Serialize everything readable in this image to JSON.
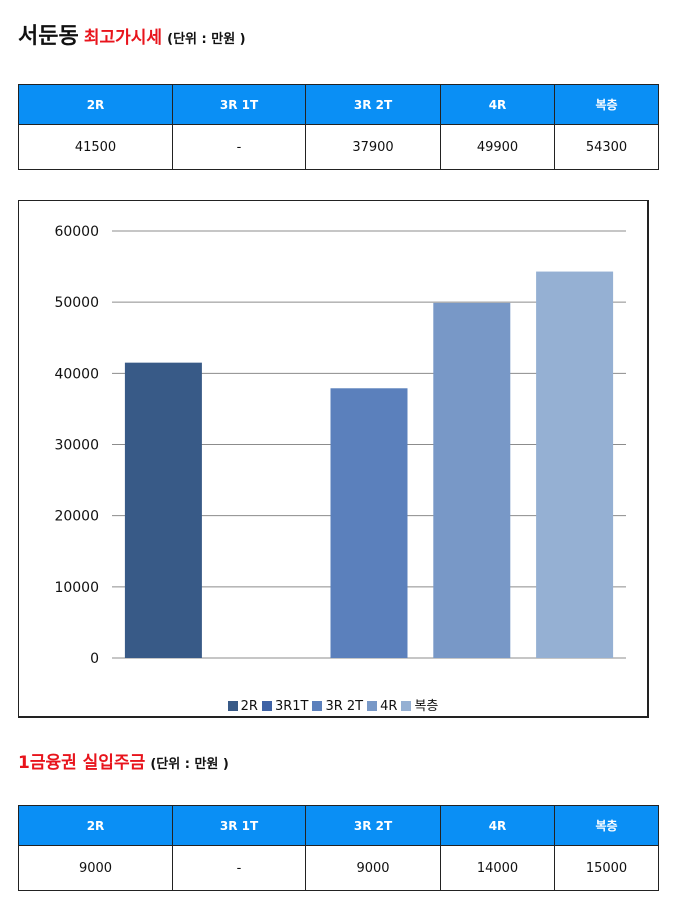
{
  "section1": {
    "title_main": "서둔동",
    "title_red": "최고가시세",
    "unit": "(단위 : 만원 )",
    "table": {
      "headers": [
        "2R",
        "3R 1T",
        "3R 2T",
        "4R",
        "복층"
      ],
      "values": [
        "41500",
        "-",
        "37900",
        "49900",
        "54300"
      ]
    }
  },
  "section2": {
    "title_red": "1금융권 실입주금",
    "unit": "(단위 : 만원 )",
    "table": {
      "headers": [
        "2R",
        "3R 1T",
        "3R 2T",
        "4R",
        "복층"
      ],
      "values": [
        "9000",
        "-",
        "9000",
        "14000",
        "15000"
      ]
    }
  },
  "chart_data": {
    "type": "bar",
    "series": [
      {
        "name": "2R",
        "value": 41500,
        "color": "#385a87"
      },
      {
        "name": "3R1T",
        "value": null,
        "color": "#3e62a5"
      },
      {
        "name": "3R 2T",
        "value": 37900,
        "color": "#5b80bc"
      },
      {
        "name": "4R",
        "value": 49900,
        "color": "#7898c7"
      },
      {
        "name": "복층",
        "value": 54300,
        "color": "#95b0d3"
      }
    ],
    "ylim": [
      0,
      60000
    ],
    "yticks": [
      "0",
      "10000",
      "20000",
      "30000",
      "40000",
      "50000",
      "60000"
    ],
    "grid": true,
    "legend_position": "bottom"
  }
}
